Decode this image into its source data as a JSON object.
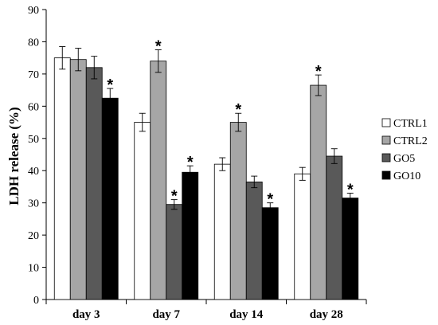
{
  "chart_data": {
    "type": "bar",
    "title": "",
    "xlabel": "",
    "ylabel": "LDH release (%)",
    "ylim": [
      0,
      90
    ],
    "ytick_step": 10,
    "grid": false,
    "legend_position": "right",
    "categories": [
      "day 3",
      "day 7",
      "day 14",
      "day 28"
    ],
    "series": [
      {
        "name": "CTRL1",
        "color": "#ffffff",
        "values": [
          75,
          55,
          42,
          39
        ],
        "errors": [
          3.5,
          2.8,
          2.0,
          2.0
        ],
        "significant": [
          false,
          false,
          false,
          false
        ]
      },
      {
        "name": "CTRL2",
        "color": "#a6a6a6",
        "values": [
          74.5,
          74,
          55,
          66.5
        ],
        "errors": [
          3.5,
          3.5,
          2.8,
          3.2
        ],
        "significant": [
          false,
          true,
          true,
          true
        ]
      },
      {
        "name": "GO5",
        "color": "#595959",
        "values": [
          72,
          29.5,
          36.5,
          44.5
        ],
        "errors": [
          3.5,
          1.5,
          1.8,
          2.3
        ],
        "significant": [
          false,
          true,
          false,
          false
        ]
      },
      {
        "name": "GO10",
        "color": "#000000",
        "values": [
          62.5,
          39.5,
          28.5,
          31.5
        ],
        "errors": [
          3.0,
          2.0,
          1.5,
          1.5
        ],
        "significant": [
          true,
          true,
          true,
          true
        ]
      }
    ],
    "significance_marker": "*"
  }
}
